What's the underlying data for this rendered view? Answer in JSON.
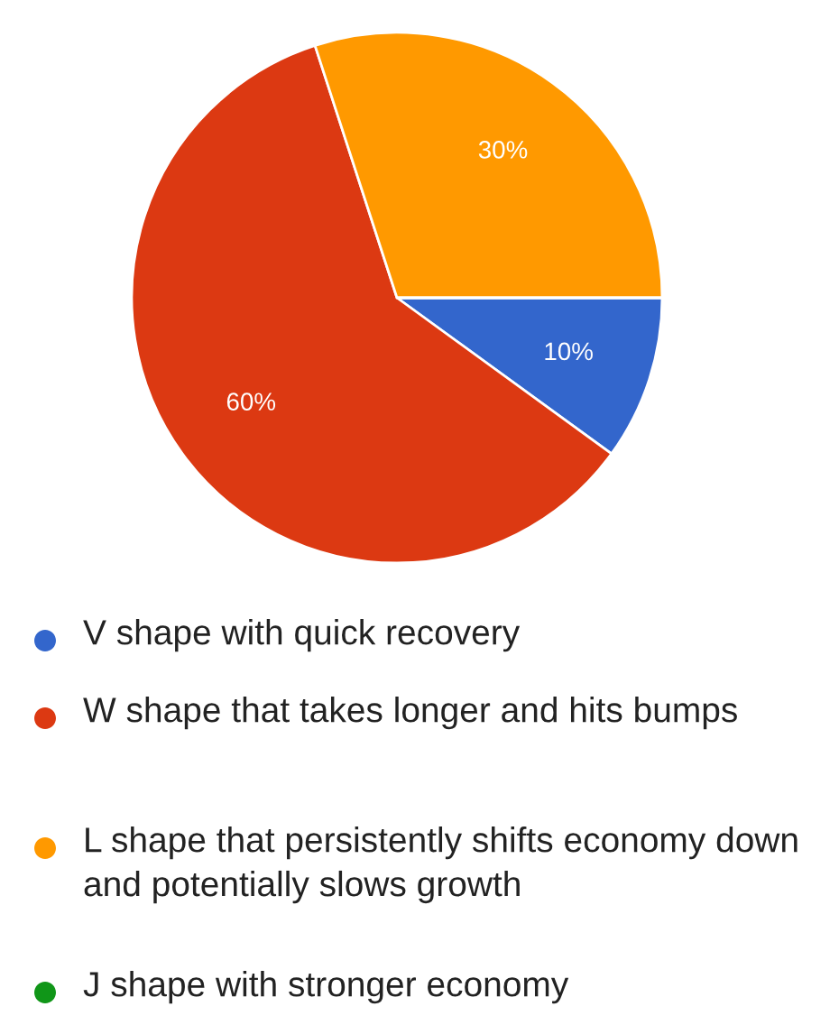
{
  "chart_data": {
    "type": "pie",
    "categories": [
      "V shape with quick recovery",
      "W shape that takes longer and hits bumps",
      "L shape that persistently shifts economy down and potentially slows growth",
      "J shape with stronger economy"
    ],
    "values": [
      10,
      60,
      30,
      0
    ],
    "colors": [
      "#3366cc",
      "#dc3912",
      "#ff9900",
      "#109618"
    ],
    "value_labels": [
      "10%",
      "60%",
      "30%",
      null
    ],
    "legend": "bottom"
  }
}
